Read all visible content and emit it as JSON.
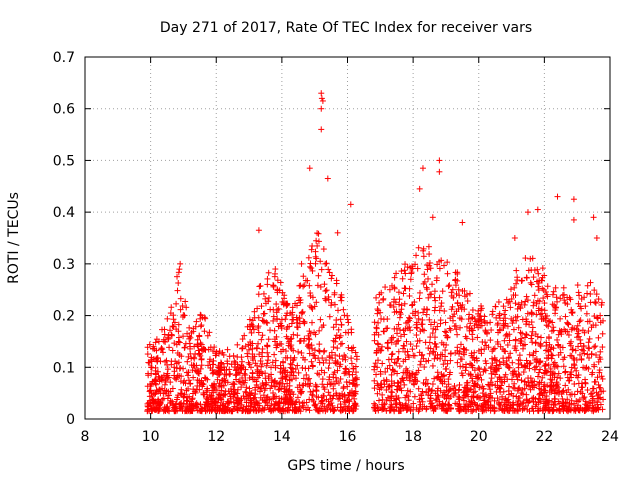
{
  "chart_data": {
    "type": "scatter",
    "title": "Day 271 of 2017, Rate Of TEC Index for receiver vars",
    "xlabel": "GPS time / hours",
    "ylabel": "ROTI / TECUs",
    "xlim": [
      8,
      24
    ],
    "ylim": [
      0,
      0.7
    ],
    "xticks": [
      8,
      10,
      12,
      14,
      16,
      18,
      20,
      22,
      24
    ],
    "yticks": [
      0,
      0.1,
      0.2,
      0.3,
      0.4,
      0.5,
      0.6,
      0.7
    ],
    "xtick_labels": [
      "8",
      "10",
      "12",
      "14",
      "16",
      "18",
      "20",
      "22",
      "24"
    ],
    "ytick_labels": [
      "0",
      "0.1",
      "0.2",
      "0.3",
      "0.4",
      "0.5",
      "0.6",
      "0.7"
    ],
    "grid": true,
    "marker": "+",
    "marker_color": "#ff0000",
    "data_ranges": [
      {
        "x_start": 9.9,
        "x_end": 16.3
      },
      {
        "x_start": 16.8,
        "x_end": 23.8
      }
    ],
    "envelope": [
      {
        "x": 9.9,
        "ymax": 0.13
      },
      {
        "x": 10.2,
        "ymax": 0.14
      },
      {
        "x": 10.6,
        "ymax": 0.2
      },
      {
        "x": 10.9,
        "ymax": 0.3
      },
      {
        "x": 11.2,
        "ymax": 0.15
      },
      {
        "x": 11.6,
        "ymax": 0.2
      },
      {
        "x": 12.0,
        "ymax": 0.12
      },
      {
        "x": 12.5,
        "ymax": 0.12
      },
      {
        "x": 12.9,
        "ymax": 0.15
      },
      {
        "x": 13.3,
        "ymax": 0.25
      },
      {
        "x": 13.8,
        "ymax": 0.28
      },
      {
        "x": 14.3,
        "ymax": 0.2
      },
      {
        "x": 14.8,
        "ymax": 0.3
      },
      {
        "x": 15.1,
        "ymax": 0.35
      },
      {
        "x": 15.5,
        "ymax": 0.28
      },
      {
        "x": 16.0,
        "ymax": 0.2
      },
      {
        "x": 16.3,
        "ymax": 0.12
      },
      {
        "x": 16.8,
        "ymax": 0.22
      },
      {
        "x": 17.3,
        "ymax": 0.25
      },
      {
        "x": 17.8,
        "ymax": 0.3
      },
      {
        "x": 18.3,
        "ymax": 0.33
      },
      {
        "x": 18.8,
        "ymax": 0.3
      },
      {
        "x": 19.3,
        "ymax": 0.28
      },
      {
        "x": 19.8,
        "ymax": 0.22
      },
      {
        "x": 20.3,
        "ymax": 0.2
      },
      {
        "x": 20.8,
        "ymax": 0.22
      },
      {
        "x": 21.3,
        "ymax": 0.3
      },
      {
        "x": 21.8,
        "ymax": 0.3
      },
      {
        "x": 22.3,
        "ymax": 0.25
      },
      {
        "x": 22.8,
        "ymax": 0.24
      },
      {
        "x": 23.3,
        "ymax": 0.26
      },
      {
        "x": 23.8,
        "ymax": 0.22
      }
    ],
    "outliers": [
      {
        "x": 15.2,
        "y": 0.63
      },
      {
        "x": 15.22,
        "y": 0.62
      },
      {
        "x": 15.25,
        "y": 0.615
      },
      {
        "x": 15.2,
        "y": 0.6
      },
      {
        "x": 15.2,
        "y": 0.56
      },
      {
        "x": 14.85,
        "y": 0.485
      },
      {
        "x": 15.4,
        "y": 0.465
      },
      {
        "x": 16.1,
        "y": 0.415
      },
      {
        "x": 13.3,
        "y": 0.365
      },
      {
        "x": 18.3,
        "y": 0.485
      },
      {
        "x": 18.2,
        "y": 0.445
      },
      {
        "x": 18.8,
        "y": 0.5
      },
      {
        "x": 18.8,
        "y": 0.478
      },
      {
        "x": 19.5,
        "y": 0.38
      },
      {
        "x": 22.4,
        "y": 0.43
      },
      {
        "x": 22.9,
        "y": 0.425
      },
      {
        "x": 21.8,
        "y": 0.405
      },
      {
        "x": 21.5,
        "y": 0.4
      },
      {
        "x": 23.5,
        "y": 0.39
      },
      {
        "x": 22.9,
        "y": 0.385
      },
      {
        "x": 10.9,
        "y": 0.3
      },
      {
        "x": 13.8,
        "y": 0.29
      },
      {
        "x": 14.6,
        "y": 0.3
      },
      {
        "x": 15.7,
        "y": 0.36
      },
      {
        "x": 18.6,
        "y": 0.39
      },
      {
        "x": 21.1,
        "y": 0.35
      },
      {
        "x": 23.6,
        "y": 0.35
      }
    ]
  }
}
